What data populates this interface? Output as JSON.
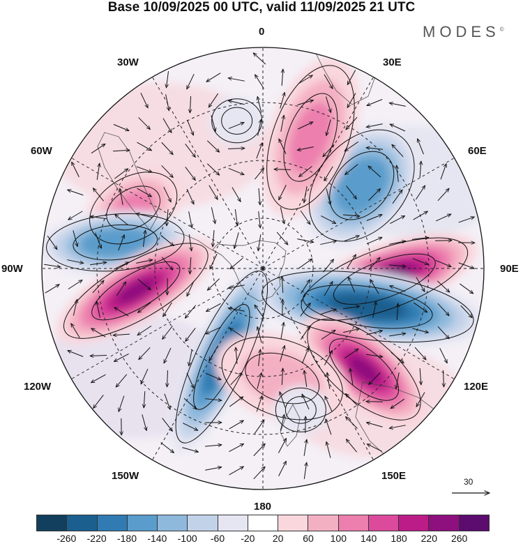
{
  "title": "Base 10/09/2025 00 UTC, valid 11/09/2025 21 UTC",
  "brand": "MODES",
  "brand_mark": "©",
  "longitude_labels": {
    "0": "0",
    "30E": "30E",
    "60E": "60E",
    "90E": "90E",
    "120E": "120E",
    "150E": "150E",
    "180": "180",
    "150W": "150W",
    "120W": "120W",
    "90W": "90W",
    "60W": "60W",
    "30W": "30W"
  },
  "reference_vector": {
    "label": "30",
    "value": 30
  },
  "colorbar": {
    "labels": [
      "-260",
      "-220",
      "-180",
      "-140",
      "-100",
      "-60",
      "-20",
      "20",
      "60",
      "100",
      "140",
      "180",
      "220",
      "260"
    ],
    "colors": [
      "#123f5e",
      "#1a5f8e",
      "#2f7bb2",
      "#5a9ccb",
      "#8fb9dc",
      "#c2d2e9",
      "#e6e6f2",
      "#ffffff",
      "#f9d7dd",
      "#f4b0c3",
      "#ec7fae",
      "#dc4a9c",
      "#bc1c87",
      "#8e0f7e",
      "#5c0c6e"
    ]
  },
  "map_data": {
    "projection": "south-polar-stereographic",
    "field": "anomaly with wind vectors",
    "anomaly_centres": [
      {
        "lon": 95,
        "value": 260
      },
      {
        "lon": 110,
        "value": -260
      },
      {
        "lon": 135,
        "value": 220
      },
      {
        "lon": 50,
        "value": -180
      },
      {
        "lon": 20,
        "value": 100
      },
      {
        "lon": -65,
        "value": 100
      },
      {
        "lon": -80,
        "value": -180
      },
      {
        "lon": -100,
        "value": 220
      },
      {
        "lon": -155,
        "value": -220
      },
      {
        "lon": 170,
        "value": 60
      },
      {
        "lon": 165,
        "value": -60
      },
      {
        "lon": -10,
        "value": -60
      }
    ]
  }
}
